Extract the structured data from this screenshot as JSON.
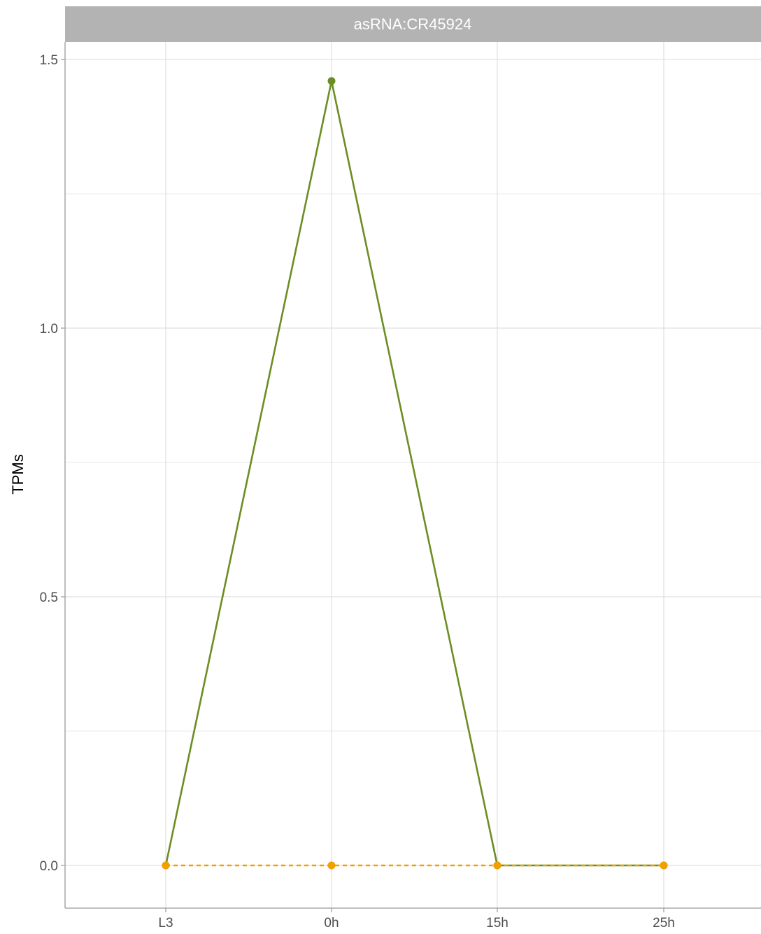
{
  "chart_data": {
    "type": "line",
    "title": "",
    "facet_label": "asRNA:CR45924",
    "xlabel": "",
    "ylabel": "TPMs",
    "categories": [
      "L3",
      "0h",
      "15h",
      "25h"
    ],
    "ylim": [
      -0.07,
      1.58
    ],
    "yticks": [
      0.0,
      0.5,
      1.0,
      1.5
    ],
    "ytick_labels": [
      "0.0",
      "0.5",
      "1.0",
      "1.5"
    ],
    "grid": true,
    "legend": "none",
    "series": [
      {
        "values": [
          0,
          1.46,
          0,
          0
        ],
        "color": "#6b8e23",
        "linestyle": "solid"
      },
      {
        "values": [
          0,
          0,
          0,
          0
        ],
        "color": "#f0a000",
        "linestyle": "dashed"
      }
    ],
    "colors": {
      "strip_background": "#b3b3b3",
      "grid": "#e0e0e0",
      "axis": "#999999"
    }
  }
}
